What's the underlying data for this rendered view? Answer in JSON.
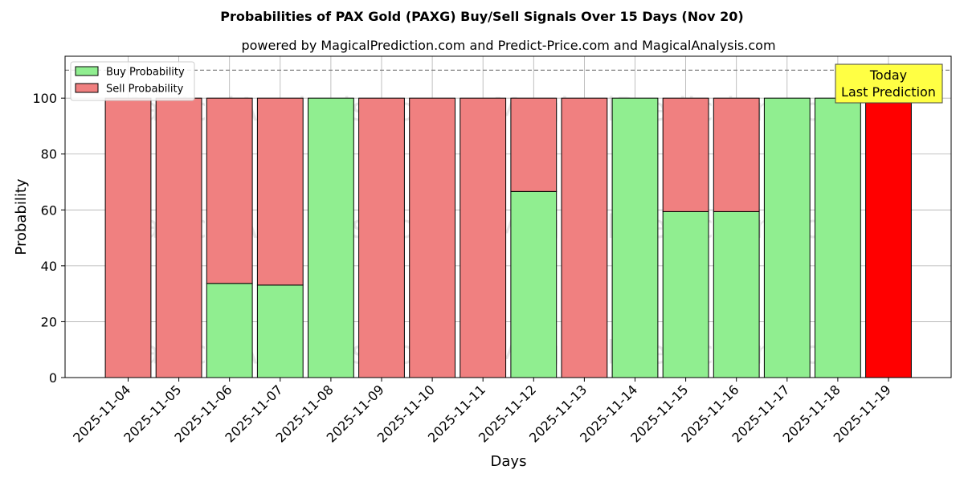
{
  "chart_data": {
    "type": "bar",
    "stacked": true,
    "title": "Probabilities of PAX Gold (PAXG) Buy/Sell Signals Over 15 Days (Nov 20)",
    "subtitle": "powered by MagicalPrediction.com and Predict-Price.com and MagicalAnalysis.com",
    "xlabel": "Days",
    "ylabel": "Probability",
    "ylim": [
      0,
      115
    ],
    "yticks": [
      0,
      20,
      40,
      60,
      80,
      100
    ],
    "reference_line": 110,
    "grid": true,
    "legend_position": "top-left",
    "categories": [
      "2025-11-04",
      "2025-11-05",
      "2025-11-06",
      "2025-11-07",
      "2025-11-08",
      "2025-11-09",
      "2025-11-10",
      "2025-11-11",
      "2025-11-12",
      "2025-11-13",
      "2025-11-14",
      "2025-11-15",
      "2025-11-16",
      "2025-11-17",
      "2025-11-18",
      "2025-11-19"
    ],
    "series": [
      {
        "name": "Buy Probability",
        "color": "#90ee90",
        "values": [
          0,
          0,
          33.7,
          33.1,
          100,
          0,
          0,
          0,
          66.6,
          0,
          100,
          59.4,
          59.4,
          100,
          100,
          0
        ]
      },
      {
        "name": "Sell Probability",
        "color": "#f08080",
        "values": [
          100,
          100,
          66.3,
          66.9,
          0,
          100,
          100,
          100,
          33.4,
          100,
          0,
          40.6,
          40.6,
          0,
          0,
          100
        ]
      }
    ],
    "highlight": {
      "category": "2025-11-19",
      "color": "#ff0000"
    },
    "annotation": {
      "lines": [
        "Today",
        "Last Prediction"
      ],
      "background": "#ffff44"
    },
    "watermarks": [
      "MagicalAnalysis.com",
      "MagicalPrediction.com"
    ]
  }
}
